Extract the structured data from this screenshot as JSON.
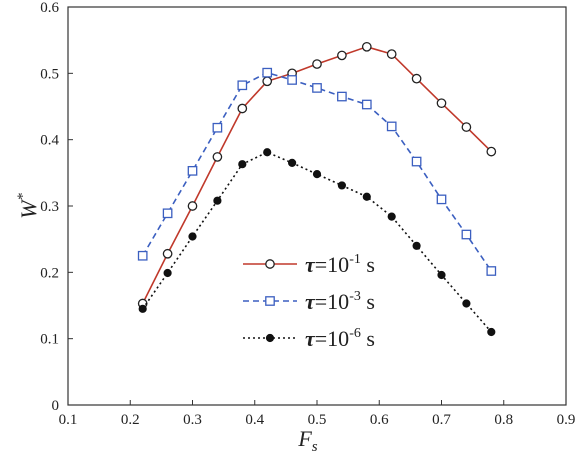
{
  "chart_data": {
    "type": "line",
    "xlabel": "F",
    "xlabel_sub": "s",
    "ylabel": "W",
    "ylabel_sup": "*",
    "xlim": [
      0.1,
      0.9
    ],
    "ylim": [
      0,
      0.6
    ],
    "xticks": [
      "0.1",
      "0.2",
      "0.3",
      "0.4",
      "0.5",
      "0.6",
      "0.7",
      "0.8",
      "0.9"
    ],
    "yticks": [
      "0",
      "0.1",
      "0.2",
      "0.3",
      "0.4",
      "0.5",
      "0.6"
    ],
    "grid": false,
    "legend_placement": "center-left",
    "x": [
      0.22,
      0.26,
      0.3,
      0.34,
      0.38,
      0.42,
      0.46,
      0.5,
      0.54,
      0.58,
      0.62,
      0.66,
      0.7,
      0.74,
      0.78
    ],
    "series": [
      {
        "name": "τ=10-1 s",
        "legend": {
          "tau": "τ",
          "eq": "=10",
          "exp": "-1",
          "unit": " s"
        },
        "color": "#c0392b",
        "dash": "solid",
        "marker": "open-circle",
        "values": [
          0.153,
          0.228,
          0.3,
          0.374,
          0.447,
          0.488,
          0.5,
          0.514,
          0.527,
          0.54,
          0.529,
          0.492,
          0.455,
          0.419,
          0.382
        ]
      },
      {
        "name": "τ=10-3 s",
        "legend": {
          "tau": "τ",
          "eq": "=10",
          "exp": "-3",
          "unit": " s"
        },
        "color": "#3b5fc0",
        "dash": "dashed",
        "marker": "open-square",
        "values": [
          0.225,
          0.289,
          0.353,
          0.418,
          0.482,
          0.501,
          0.49,
          0.478,
          0.465,
          0.453,
          0.42,
          0.367,
          0.31,
          0.257,
          0.202
        ]
      },
      {
        "name": "τ=10-6 s",
        "legend": {
          "tau": "τ",
          "eq": "=10",
          "exp": "-6",
          "unit": " s"
        },
        "color": "#111111",
        "dash": "dotted",
        "marker": "filled-circle",
        "values": [
          0.145,
          0.199,
          0.254,
          0.308,
          0.363,
          0.381,
          0.365,
          0.348,
          0.331,
          0.314,
          0.284,
          0.24,
          0.196,
          0.153,
          0.11
        ]
      }
    ]
  }
}
